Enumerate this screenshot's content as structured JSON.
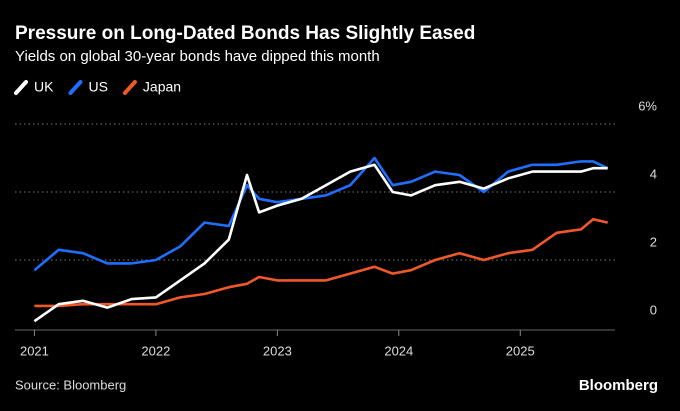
{
  "chart_data": {
    "type": "line",
    "title": "Pressure on Long-Dated Bonds Has Slightly Eased",
    "subtitle": "Yields on global 30-year bonds have dipped this month",
    "source": "Source: Bloomberg",
    "brand": "Bloomberg",
    "x": [
      2021.0,
      2021.2,
      2021.4,
      2021.6,
      2021.8,
      2022.0,
      2022.2,
      2022.4,
      2022.6,
      2022.75,
      2022.85,
      2023.0,
      2023.2,
      2023.4,
      2023.6,
      2023.8,
      2023.95,
      2024.1,
      2024.3,
      2024.5,
      2024.7,
      2024.9,
      2025.1,
      2025.3,
      2025.5,
      2025.6,
      2025.72
    ],
    "series": [
      {
        "name": "UK",
        "color": "#ffffff",
        "values": [
          0.2,
          0.7,
          0.8,
          0.6,
          0.85,
          0.9,
          1.4,
          1.9,
          2.6,
          4.5,
          3.4,
          3.6,
          3.8,
          4.2,
          4.6,
          4.8,
          4.0,
          3.9,
          4.2,
          4.3,
          4.1,
          4.4,
          4.6,
          4.6,
          4.6,
          4.7,
          4.7
        ]
      },
      {
        "name": "US",
        "color": "#1f6fff",
        "values": [
          1.7,
          2.3,
          2.2,
          1.9,
          1.9,
          2.0,
          2.4,
          3.1,
          3.0,
          4.2,
          3.8,
          3.7,
          3.8,
          3.9,
          4.2,
          5.0,
          4.2,
          4.3,
          4.6,
          4.5,
          4.0,
          4.6,
          4.8,
          4.8,
          4.9,
          4.9,
          4.7
        ]
      },
      {
        "name": "Japan",
        "color": "#f0582a",
        "values": [
          0.65,
          0.65,
          0.7,
          0.7,
          0.7,
          0.7,
          0.9,
          1.0,
          1.2,
          1.3,
          1.5,
          1.4,
          1.4,
          1.4,
          1.6,
          1.8,
          1.6,
          1.7,
          2.0,
          2.2,
          2.0,
          2.2,
          2.3,
          2.8,
          2.9,
          3.2,
          3.1
        ]
      }
    ],
    "xlim": [
      2020.84,
      2025.78
    ],
    "xticks": [
      2021,
      2022,
      2023,
      2024,
      2025
    ],
    "ylim": [
      0,
      6
    ],
    "yticks": [
      0,
      2,
      4,
      {
        "value": 6,
        "label": "6%"
      }
    ],
    "grid": true,
    "legend": "top-left"
  }
}
